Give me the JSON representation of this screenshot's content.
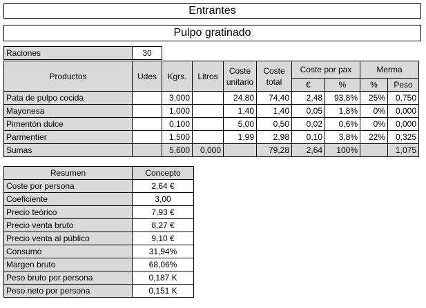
{
  "titles": {
    "category": "Entrantes",
    "dish": "Pulpo gratinado"
  },
  "raciones": {
    "label": "Raciones",
    "value": "30"
  },
  "main_table": {
    "headers": {
      "productos": "Productos",
      "udes": "Udes",
      "kgrs": "Kgrs.",
      "litros": "Litros",
      "coste_unitario_1": "Coste",
      "coste_unitario_2": "unitario",
      "coste_total_1": "Coste",
      "coste_total_2": "total",
      "coste_por_pax": "Coste por pax",
      "merma": "Merma",
      "euro": "€",
      "pct": "%",
      "merma_pct": "%",
      "peso": "Peso"
    },
    "rows": [
      {
        "producto": "Pata de pulpo cocida",
        "udes": "",
        "kgrs": "3,000",
        "litros": "",
        "coste_unitario": "24,80",
        "coste_total": "74,40",
        "pax_euro": "2,48",
        "pax_pct": "93,8%",
        "merma_pct": "25%",
        "peso": "0,750"
      },
      {
        "producto": "Mayonesa",
        "udes": "",
        "kgrs": "1,000",
        "litros": "",
        "coste_unitario": "1,40",
        "coste_total": "1,40",
        "pax_euro": "0,05",
        "pax_pct": "1,8%",
        "merma_pct": "0%",
        "peso": "0,000"
      },
      {
        "producto": "Pimentón dulce",
        "udes": "",
        "kgrs": "0,100",
        "litros": "",
        "coste_unitario": "5,00",
        "coste_total": "0,50",
        "pax_euro": "0,02",
        "pax_pct": "0,6%",
        "merma_pct": "0%",
        "peso": "0,000"
      },
      {
        "producto": "Parmentier",
        "udes": "",
        "kgrs": "1,500",
        "litros": "",
        "coste_unitario": "1,99",
        "coste_total": "2,98",
        "pax_euro": "0,10",
        "pax_pct": "3,8%",
        "merma_pct": "22%",
        "peso": "0,325"
      }
    ],
    "sumas": {
      "label": "Sumas",
      "udes": "",
      "kgrs": "5,600",
      "litros": "0,000",
      "coste_unitario": "",
      "coste_total": "79,28",
      "pax_euro": "2,64",
      "pax_pct": "100%",
      "merma_pct": "",
      "peso": "1,075"
    }
  },
  "resumen": {
    "header_label": "Resumen",
    "header_value": "Concepto",
    "rows": [
      {
        "label": "Coste por persona",
        "value": "2,64 €"
      },
      {
        "label": "Coeficiente",
        "value": "3,00"
      },
      {
        "label": "Precio teórico",
        "value": "7,93 €"
      },
      {
        "label": "Precio venta bruto",
        "value": "8,27 €"
      },
      {
        "label": "Precio venta al público",
        "value": "9,10 €"
      },
      {
        "label": "Consumo",
        "value": "31,94%"
      },
      {
        "label": "Margen bruto",
        "value": "68,06%"
      },
      {
        "label": "Peso bruto por persona",
        "value": "0,187 K"
      },
      {
        "label": "Peso neto por persona",
        "value": "0,151 K"
      }
    ]
  }
}
